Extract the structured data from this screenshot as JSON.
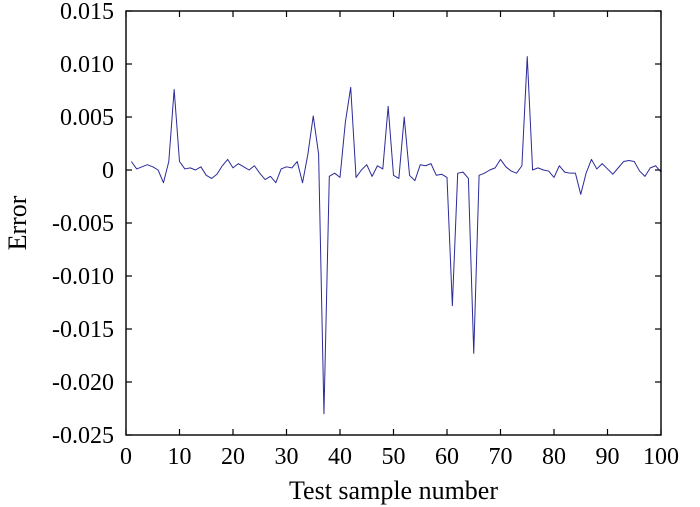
{
  "chart_data": {
    "type": "line",
    "title": "",
    "xlabel": "Test sample number",
    "ylabel": "Error",
    "xlim": [
      0,
      100
    ],
    "ylim": [
      -0.025,
      0.015
    ],
    "xticks": [
      0,
      10,
      20,
      30,
      40,
      50,
      60,
      70,
      80,
      90,
      100
    ],
    "xtick_labels": [
      "0",
      "10",
      "20",
      "30",
      "40",
      "50",
      "60",
      "70",
      "80",
      "90",
      "100"
    ],
    "yticks": [
      0.015,
      0.01,
      0.005,
      0,
      -0.005,
      -0.01,
      -0.015,
      -0.02,
      -0.025
    ],
    "ytick_labels": [
      "0.015",
      "0.010",
      "0.005",
      "0",
      "-0.005",
      "-0.010",
      "-0.015",
      "-0.020",
      "-0.025"
    ],
    "grid": false,
    "colors": {
      "series": "#2b2b9a",
      "frame": "#000000"
    },
    "series": [
      {
        "x": [
          1,
          2,
          3,
          4,
          5,
          6,
          7,
          8,
          9,
          10,
          11,
          12,
          13,
          14,
          15,
          16,
          17,
          18,
          19,
          20,
          21,
          22,
          23,
          24,
          25,
          26,
          27,
          28,
          29,
          30,
          31,
          32,
          33,
          34,
          35,
          36,
          37,
          38,
          39,
          40,
          41,
          42,
          43,
          44,
          45,
          46,
          47,
          48,
          49,
          50,
          51,
          52,
          53,
          54,
          55,
          56,
          57,
          58,
          59,
          60,
          61,
          62,
          63,
          64,
          65,
          66,
          67,
          68,
          69,
          70,
          71,
          72,
          73,
          74,
          75,
          76,
          77,
          78,
          79,
          80,
          81,
          82,
          83,
          84,
          85,
          86,
          87,
          88,
          89,
          90,
          91,
          92,
          93,
          94,
          95,
          96,
          97,
          98,
          99,
          100
        ],
        "values": [
          0.0008,
          0.0001,
          0.0003,
          0.0005,
          0.0003,
          0.0,
          -0.0012,
          0.0008,
          0.0076,
          0.0008,
          0.0001,
          0.0002,
          0.0,
          0.0003,
          -0.0005,
          -0.0008,
          -0.0004,
          0.0004,
          0.001,
          0.0002,
          0.0006,
          0.0003,
          0.0,
          0.0004,
          -0.0003,
          -0.0009,
          -0.0006,
          -0.0012,
          0.0001,
          0.0003,
          0.0002,
          0.0008,
          -0.0012,
          0.0015,
          0.0051,
          0.0015,
          -0.023,
          -0.0006,
          -0.0003,
          -0.0007,
          0.0045,
          0.0078,
          -0.0007,
          0.0,
          0.0005,
          -0.0006,
          0.0004,
          0.0001,
          0.006,
          -0.0005,
          -0.0008,
          0.005,
          -0.0005,
          -0.001,
          0.0005,
          0.0004,
          0.0006,
          -0.0005,
          -0.0004,
          -0.0007,
          -0.0128,
          -0.0003,
          -0.0002,
          -0.0008,
          -0.0173,
          -0.0005,
          -0.0003,
          0.0,
          0.0002,
          0.001,
          0.0003,
          -0.0001,
          -0.0003,
          0.0004,
          0.0107,
          0.0,
          0.0002,
          0.0,
          -0.0001,
          -0.0007,
          0.0004,
          -0.0002,
          -0.0003,
          -0.0003,
          -0.0023,
          -0.0003,
          0.001,
          0.0001,
          0.0006,
          0.0001,
          -0.0004,
          0.0002,
          0.0008,
          0.0009,
          0.0008,
          -0.0001,
          -0.0006,
          0.0002,
          0.0004,
          -0.0002
        ]
      }
    ]
  }
}
